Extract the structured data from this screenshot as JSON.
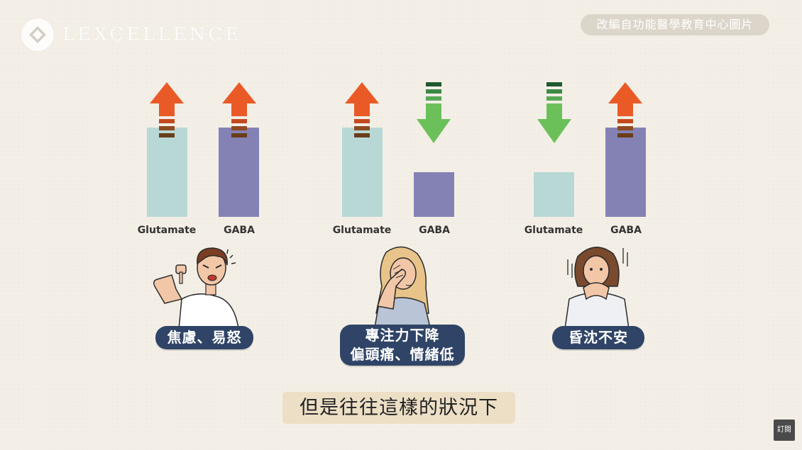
{
  "logo": {
    "text": "LEXCELLENCE"
  },
  "source_badge": "改編自功能醫學教育中心圖片",
  "panels": [
    {
      "id": "panel-1",
      "glutamate": {
        "label": "Glutamate",
        "level": "high",
        "direction": "up"
      },
      "gaba": {
        "label": "GABA",
        "level": "high",
        "direction": "up"
      },
      "symptoms": [
        "焦慮、易怒"
      ]
    },
    {
      "id": "panel-2",
      "glutamate": {
        "label": "Glutamate",
        "level": "high",
        "direction": "up"
      },
      "gaba": {
        "label": "GABA",
        "level": "low",
        "direction": "down"
      },
      "symptoms": [
        "專注力下降",
        "偏頭痛、情緒低"
      ]
    },
    {
      "id": "panel-3",
      "glutamate": {
        "label": "Glutamate",
        "level": "low",
        "direction": "down"
      },
      "gaba": {
        "label": "GABA",
        "level": "high",
        "direction": "up"
      },
      "symptoms": [
        "昏沈不安"
      ]
    }
  ],
  "colors": {
    "glutamate_bar": "#b8d8d6",
    "gaba_bar": "#8482b4",
    "up_arrow": "#ea5a27",
    "down_arrow": "#6cc05a",
    "tag_bg": "#2f4466"
  },
  "subtitle": "但是往往這樣的狀況下",
  "subscribe_label": "訂閱"
}
